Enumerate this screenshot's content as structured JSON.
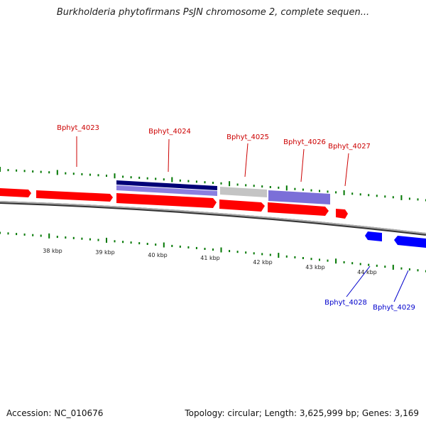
{
  "title": "Burkholderia phytofirmans PsJN chromosome 2, complete sequen...",
  "accession": "Accession: NC_010676",
  "summary": "Topology: circular; Length: 3,625,999 bp; Genes: 3,169",
  "colors": {
    "forward_gene": "#ff0000",
    "reverse_gene": "#0000ff",
    "forward_label": "#cc0000",
    "reverse_label": "#0000cc",
    "backbone": "#808080",
    "tick": "#007700",
    "dark_feature": "#000077",
    "light_feature": "#7b6fd8",
    "grey_feature": "#c0c0c0"
  },
  "forward_genes": [
    {
      "name": "Bphyt_4023"
    },
    {
      "name": "Bphyt_4024"
    },
    {
      "name": "Bphyt_4025"
    },
    {
      "name": "Bphyt_4026"
    },
    {
      "name": "Bphyt_4027"
    }
  ],
  "reverse_genes": [
    {
      "name": "Bphyt_4028"
    },
    {
      "name": "Bphyt_4029"
    }
  ],
  "scale_labels": [
    "38 kbp",
    "39 kbp",
    "40 kbp",
    "41 kbp",
    "42 kbp",
    "43 kbp",
    "44 kbp"
  ]
}
